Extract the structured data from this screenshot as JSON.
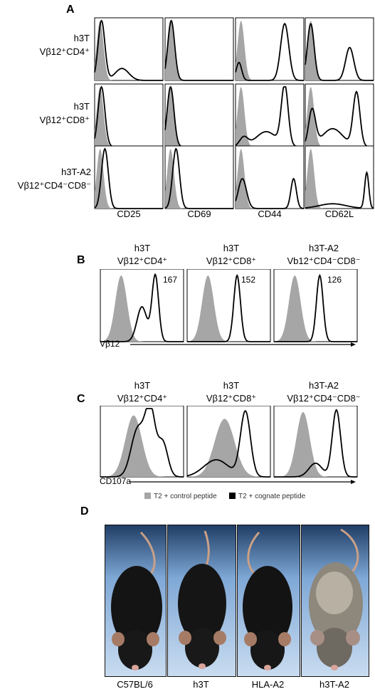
{
  "panel_a": {
    "letter": "A",
    "rows": [
      {
        "line1": "h3T",
        "line2": "Vβ12⁺CD4⁺"
      },
      {
        "line1": "h3T",
        "line2": "Vβ12⁺CD8⁺"
      },
      {
        "line1": "h3T-A2",
        "line2": "Vβ12⁺CD4⁻CD8⁻"
      }
    ],
    "columns": [
      "CD25",
      "CD69",
      "CD44",
      "CD62L"
    ]
  },
  "panel_b": {
    "letter": "B",
    "titles": [
      {
        "line1": "h3T",
        "line2": "Vβ12⁺CD4⁺"
      },
      {
        "line1": "h3T",
        "line2": "Vβ12⁺CD8⁺"
      },
      {
        "line1": "h3T-A2",
        "line2": "Vb12⁺CD4⁻CD8⁻"
      }
    ],
    "mfi": [
      "167",
      "152",
      "126"
    ],
    "axis_label": "Vβ12"
  },
  "panel_c": {
    "letter": "C",
    "titles": [
      {
        "line1": "h3T",
        "line2": "Vβ12⁺CD4⁺"
      },
      {
        "line1": "h3T",
        "line2": "Vβ12⁺CD8⁺"
      },
      {
        "line1": "h3T-A2",
        "line2": "Vβ12⁺CD4⁻CD8⁻"
      }
    ],
    "axis_label": "CD107a",
    "legend": {
      "control": "T2 + control peptide",
      "cognate": "T2 + cognate peptide",
      "control_color": "#a6a6a6",
      "cognate_color": "#000000"
    }
  },
  "panel_d": {
    "letter": "D",
    "mice": [
      "C57BL/6",
      "h3T",
      "HLA-A2",
      "h3T-A2"
    ]
  }
}
